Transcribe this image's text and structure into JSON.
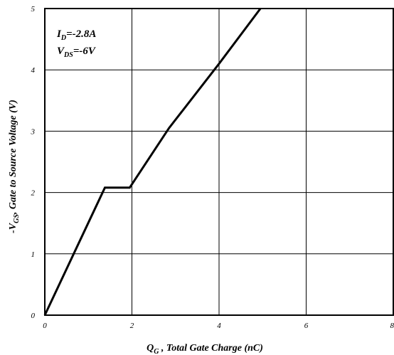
{
  "chart_data": {
    "type": "line",
    "xlabel": {
      "prefix": "Q",
      "sub": "G",
      "text": " , Total Gate Charge (nC)"
    },
    "ylabel": {
      "prefix": "-V",
      "sub": "GS",
      "text": ", Gate to Source Voltage (V)"
    },
    "xlim": [
      0,
      8
    ],
    "ylim": [
      0,
      5
    ],
    "x_ticks": [
      "0",
      "2",
      "4",
      "6",
      "8"
    ],
    "y_ticks": [
      "0",
      "1",
      "2",
      "3",
      "4",
      "5"
    ],
    "grid": true,
    "annotations": [
      {
        "prefix": "I",
        "sub": "D",
        "text": "=-2.8A"
      },
      {
        "prefix": "V",
        "sub": "DS",
        "text": "=-6V"
      }
    ],
    "series": [
      {
        "x": [
          0,
          1.38,
          1.95,
          2.85,
          4.0,
          4.95
        ],
        "y": [
          0,
          2.08,
          2.08,
          3.05,
          4.1,
          5.0
        ]
      }
    ]
  }
}
